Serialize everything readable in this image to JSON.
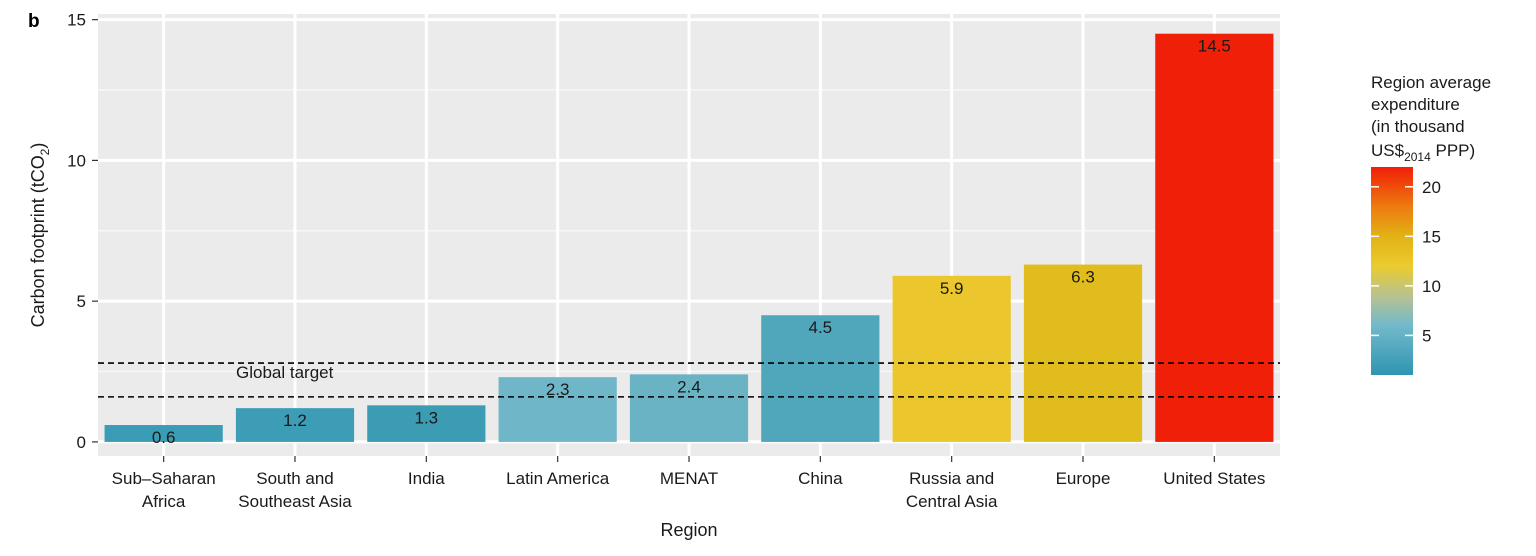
{
  "panel_label": "b",
  "chart_data": {
    "type": "bar",
    "categories": [
      [
        "Sub–Saharan",
        "Africa"
      ],
      [
        "South and",
        "Southeast Asia"
      ],
      [
        "India"
      ],
      [
        "Latin America"
      ],
      [
        "MENAT"
      ],
      [
        "China"
      ],
      [
        "Russia and",
        "Central Asia"
      ],
      [
        "Europe"
      ],
      [
        "United States"
      ]
    ],
    "values": [
      0.6,
      1.2,
      1.3,
      2.3,
      2.4,
      4.5,
      5.9,
      6.3,
      14.5
    ],
    "value_labels": [
      "0.6",
      "1.2",
      "1.3",
      "2.3",
      "2.4",
      "4.5",
      "5.9",
      "6.3",
      "14.5"
    ],
    "bar_colors": [
      "#3a9db5",
      "#3d9db6",
      "#3b9cb4",
      "#6fb6c8",
      "#6ab3c5",
      "#50a6bb",
      "#ebc72d",
      "#e0bc1c",
      "#f01f07"
    ],
    "xlabel": "Region",
    "ylabel": "Carbon footprint (tCO₂)",
    "ylabel_main": "Carbon footprint (tCO",
    "ylabel_sub": "2",
    "ylabel_end": ")",
    "ylim": [
      -0.5,
      15.2
    ],
    "yticks": [
      0,
      5,
      10,
      15
    ],
    "grid": true,
    "reference_lines": [
      {
        "value": 1.6,
        "style": "dashed"
      },
      {
        "value": 2.8,
        "style": "dashed"
      }
    ],
    "annotation": "Global target",
    "colorbar": {
      "title_lines": [
        "Region average",
        "expenditure",
        "(in thousand"
      ],
      "title_last_main": "US$",
      "title_last_sub": "2014",
      "title_last_end": " PPP)",
      "range": [
        1,
        22
      ],
      "ticks": [
        5,
        10,
        15,
        20
      ],
      "gradient": [
        {
          "value": 1,
          "color": "#2f95b2"
        },
        {
          "value": 6,
          "color": "#72b9cb"
        },
        {
          "value": 9,
          "color": "#b8c290"
        },
        {
          "value": 12,
          "color": "#ebcb2e"
        },
        {
          "value": 15,
          "color": "#e2b215"
        },
        {
          "value": 18,
          "color": "#ee7a10"
        },
        {
          "value": 22,
          "color": "#f01f07"
        }
      ]
    }
  }
}
